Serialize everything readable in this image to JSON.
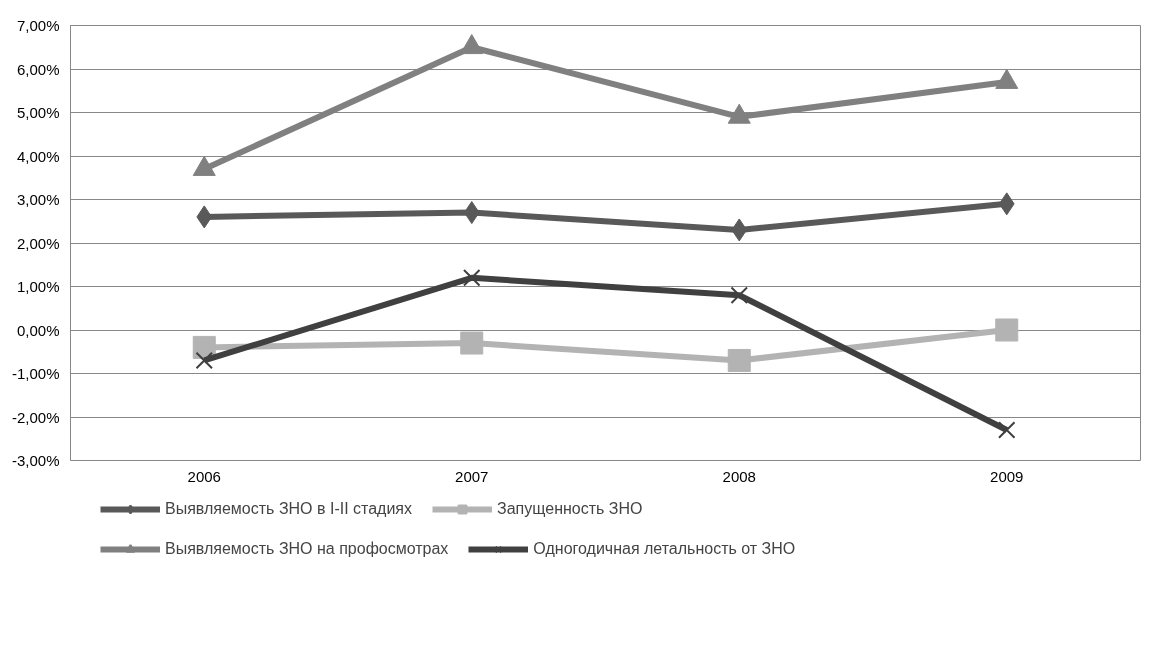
{
  "chart_data": {
    "type": "line",
    "categories": [
      "2006",
      "2007",
      "2008",
      "2009"
    ],
    "series": [
      {
        "name": "Выявляемость ЗНО в I-II стадиях",
        "color": "#595959",
        "marker": "diamond",
        "values": [
          2.6,
          2.7,
          2.3,
          2.9
        ]
      },
      {
        "name": "Запущенность ЗНО",
        "color": "#b3b3b3",
        "marker": "square",
        "values": [
          -0.4,
          -0.3,
          -0.7,
          0.0
        ]
      },
      {
        "name": "Выявляемость ЗНО на профосмотрах",
        "color": "#808080",
        "marker": "triangle",
        "values": [
          3.7,
          6.5,
          4.9,
          5.7
        ]
      },
      {
        "name": "Одногодичная летальность от ЗНО",
        "color": "#404040",
        "marker": "cross",
        "values": [
          -0.7,
          1.2,
          0.8,
          -2.3
        ]
      }
    ],
    "ylim": [
      -3,
      7
    ],
    "yticks": [
      {
        "value": -3,
        "label": "-3,00%"
      },
      {
        "value": -2,
        "label": "-2,00%"
      },
      {
        "value": -1,
        "label": "-1,00%"
      },
      {
        "value": 0,
        "label": "0,00%"
      },
      {
        "value": 1,
        "label": "1,00%"
      },
      {
        "value": 2,
        "label": "2,00%"
      },
      {
        "value": 3,
        "label": "3,00%"
      },
      {
        "value": 4,
        "label": "4,00%"
      },
      {
        "value": 5,
        "label": "5,00%"
      },
      {
        "value": 6,
        "label": "6,00%"
      },
      {
        "value": 7,
        "label": "7,00%"
      }
    ],
    "grid": "y",
    "legend": "bottom",
    "line_style": "solid"
  }
}
